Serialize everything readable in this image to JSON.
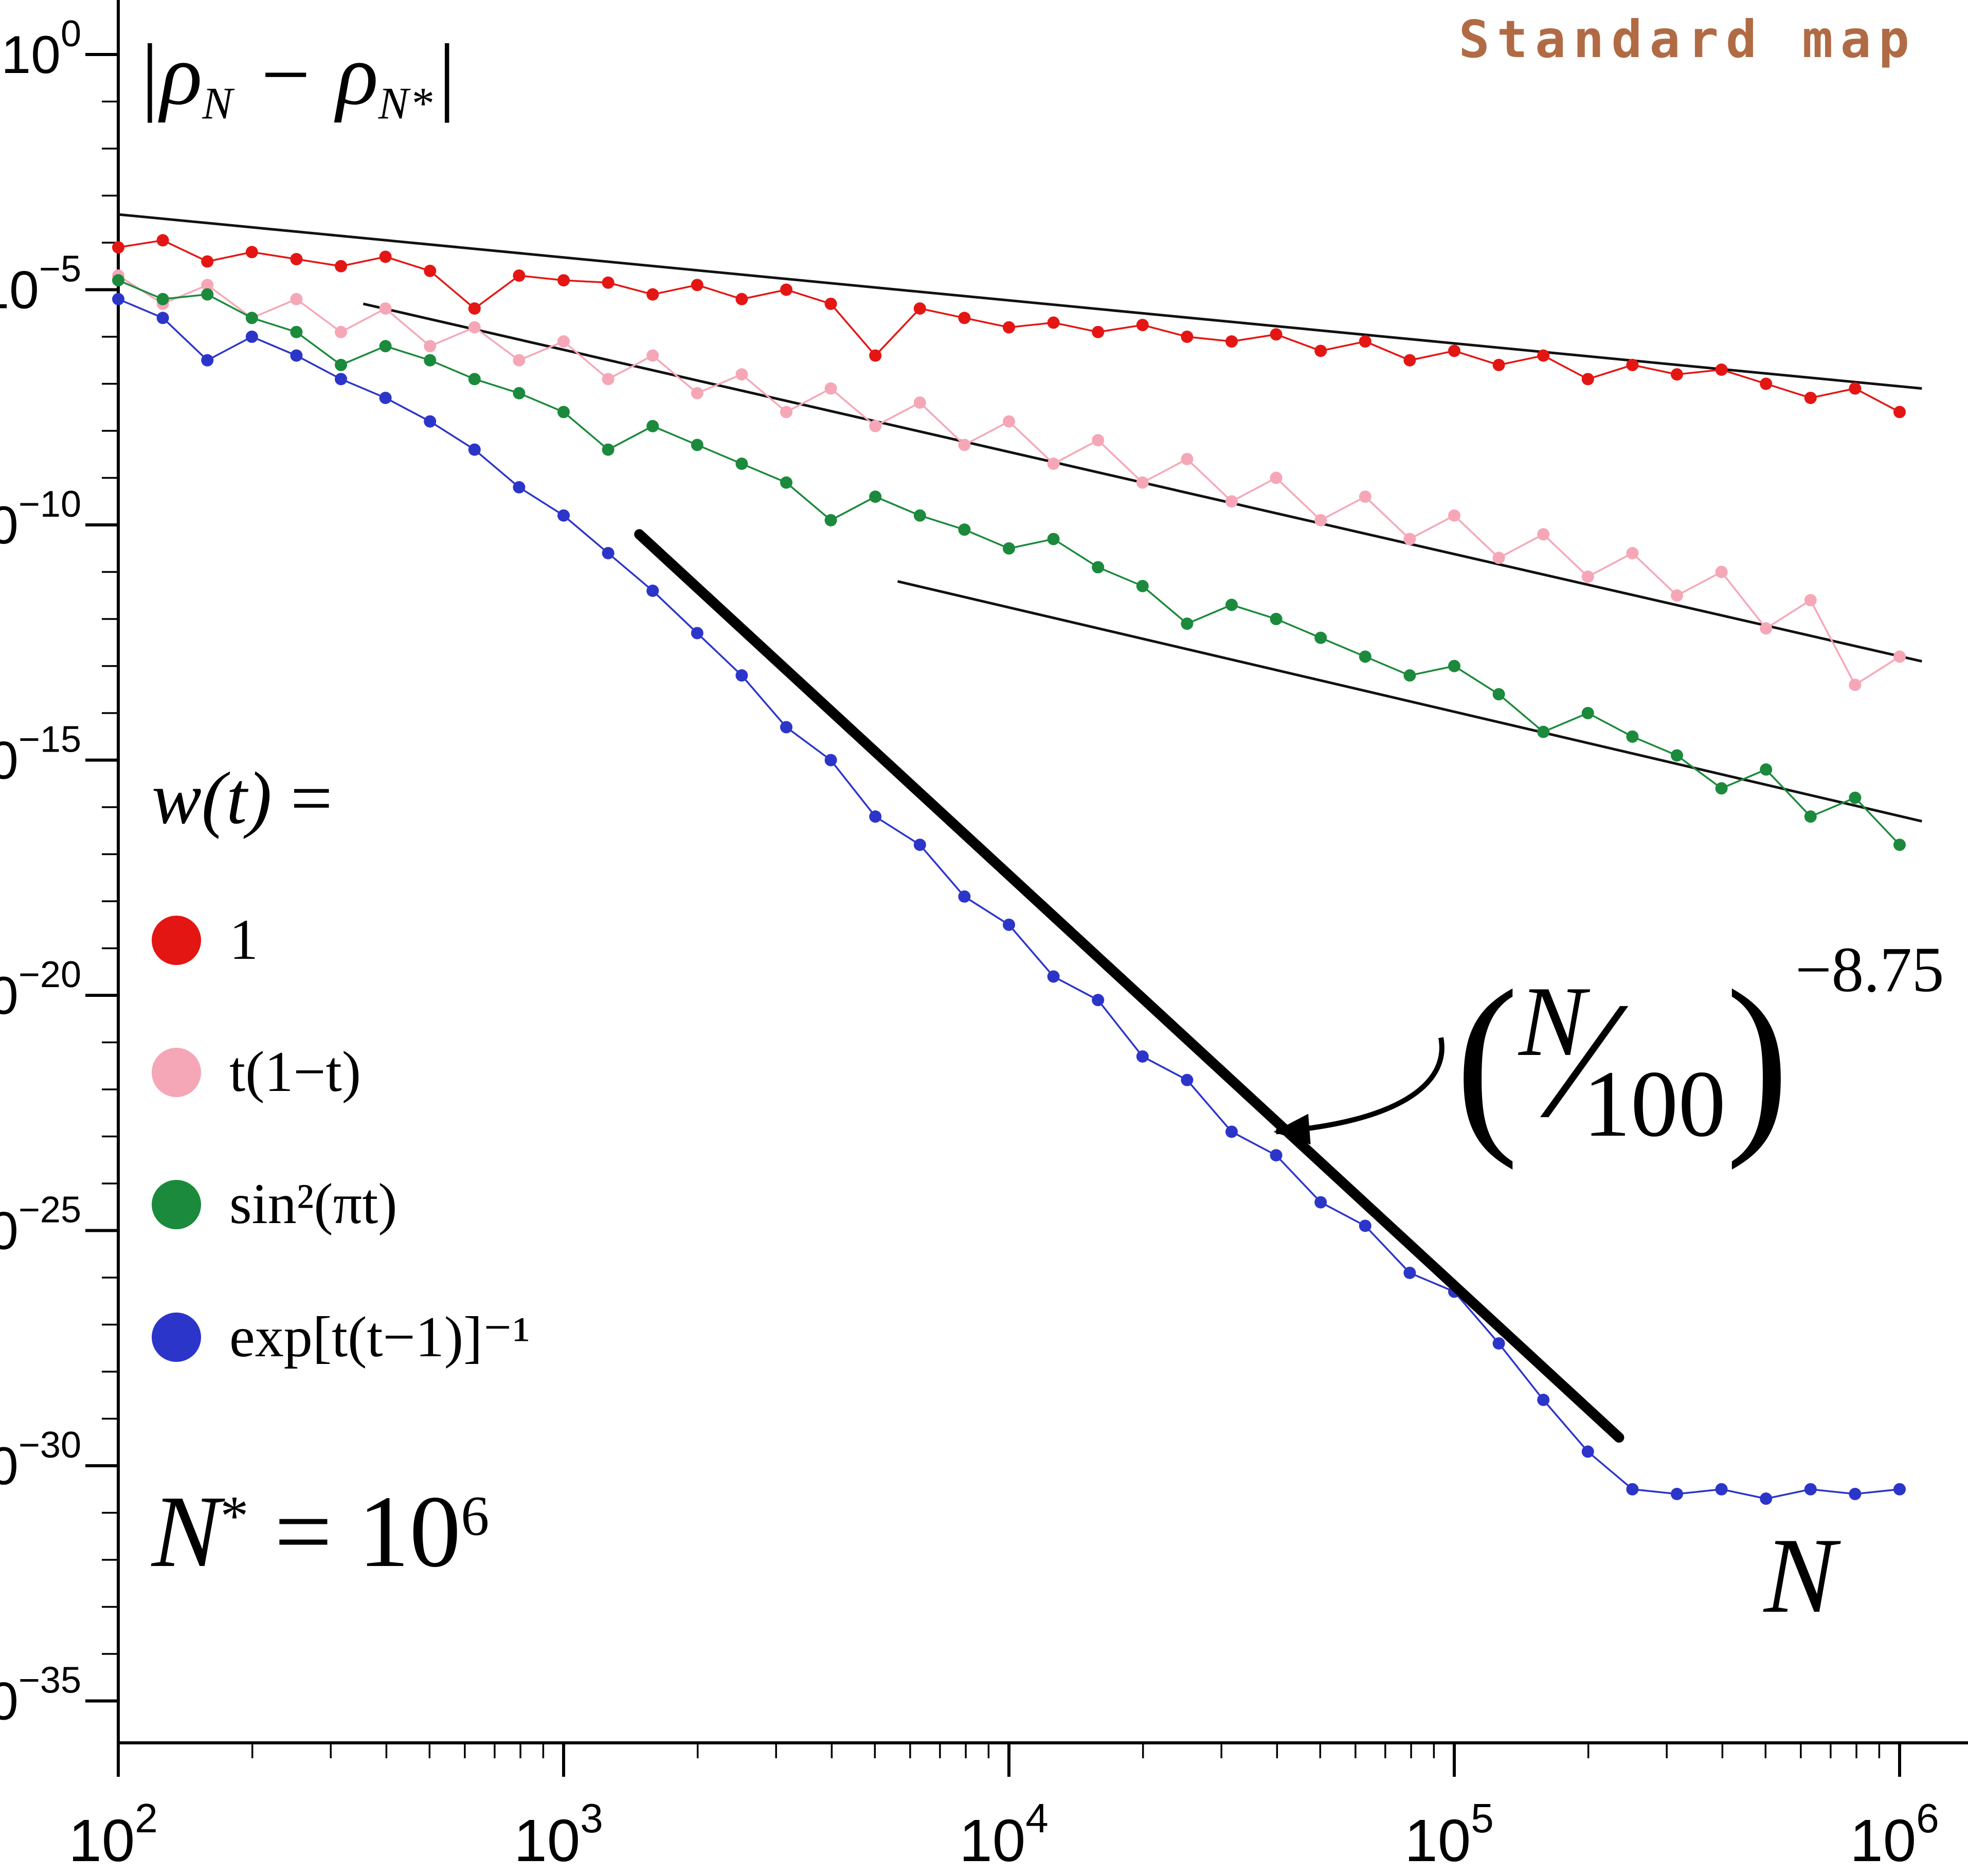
{
  "title": "Standard map",
  "title_color": "#b06b45",
  "xlabel": "N",
  "ylabel": {
    "p1": "|ρ",
    "s1": "N",
    "p2": " − ρ",
    "s2": "N*",
    "p3": "|"
  },
  "nstar": {
    "n": "N",
    "star": "*",
    "eq": " = 10",
    "exp": "6"
  },
  "legend": {
    "heading": {
      "lhs": "w(t)",
      "eq": " ="
    },
    "items": [
      {
        "id": "w1",
        "label": "1",
        "color": "#e41613"
      },
      {
        "id": "t1t",
        "label": "t(1−t)",
        "color": "#f6a7b7"
      },
      {
        "id": "sin2pit",
        "label": "sin²(πt)",
        "color": "#1b8a3c"
      },
      {
        "id": "expbump",
        "label": "exp[t(t−1)]⁻¹",
        "color": "#2c35c9"
      }
    ]
  },
  "annotation": {
    "open": "(",
    "num": "N",
    "slash": "∕",
    "den": "100",
    "close": ")",
    "exp": "−8.75"
  },
  "chart_data": {
    "type": "scatter",
    "title": "Standard map",
    "xlabel": "N",
    "ylabel": "|rho_N - rho_N*|",
    "x_axis": {
      "scale": "log10",
      "lim": [
        2,
        6.05
      ],
      "ticks_log10": [
        2,
        3,
        4,
        5,
        6
      ]
    },
    "y_axis": {
      "scale": "log10",
      "lim": [
        -35.8,
        0.5
      ],
      "major_ticks_log10": [
        0,
        -5,
        -10,
        -15,
        -20,
        -25,
        -30,
        -35
      ]
    },
    "x_log10": [
      2.0,
      2.1,
      2.2,
      2.3,
      2.4,
      2.5,
      2.6,
      2.7,
      2.8,
      2.9,
      3.0,
      3.1,
      3.2,
      3.3,
      3.4,
      3.5,
      3.6,
      3.7,
      3.8,
      3.9,
      4.0,
      4.1,
      4.2,
      4.3,
      4.4,
      4.5,
      4.6,
      4.7,
      4.8,
      4.9,
      5.0,
      5.1,
      5.2,
      5.3,
      5.4,
      5.5,
      5.6,
      5.7,
      5.8,
      5.9,
      6.0
    ],
    "series": [
      {
        "id": "w1",
        "label": "1",
        "color": "#e41613",
        "y_log10": [
          -4.1,
          -3.95,
          -4.4,
          -4.2,
          -4.35,
          -4.5,
          -4.3,
          -4.6,
          -5.4,
          -4.7,
          -4.8,
          -4.85,
          -5.1,
          -4.9,
          -5.2,
          -5.0,
          -5.3,
          -6.4,
          -5.4,
          -5.6,
          -5.8,
          -5.7,
          -5.9,
          -5.75,
          -6.0,
          -6.1,
          -5.95,
          -6.3,
          -6.1,
          -6.5,
          -6.3,
          -6.6,
          -6.4,
          -6.9,
          -6.6,
          -6.8,
          -6.7,
          -7.0,
          -7.3,
          -7.1,
          -7.6
        ]
      },
      {
        "id": "t1t",
        "label": "t(1-t)",
        "color": "#f6a7b7",
        "y_log10": [
          -4.7,
          -5.3,
          -4.9,
          -5.6,
          -5.2,
          -5.9,
          -5.4,
          -6.2,
          -5.8,
          -6.5,
          -6.1,
          -6.9,
          -6.4,
          -7.2,
          -6.8,
          -7.6,
          -7.1,
          -7.9,
          -7.4,
          -8.3,
          -7.8,
          -8.7,
          -8.2,
          -9.1,
          -8.6,
          -9.5,
          -9.0,
          -9.9,
          -9.4,
          -10.3,
          -9.8,
          -10.7,
          -10.2,
          -11.1,
          -10.6,
          -11.5,
          -11.0,
          -12.2,
          -11.6,
          -13.4,
          -12.8
        ]
      },
      {
        "id": "sin2pit",
        "label": "sin^2(pi t)",
        "color": "#1b8a3c",
        "y_log10": [
          -4.8,
          -5.2,
          -5.1,
          -5.6,
          -5.9,
          -6.6,
          -6.2,
          -6.5,
          -6.9,
          -7.2,
          -7.6,
          -8.4,
          -7.9,
          -8.3,
          -8.7,
          -9.1,
          -9.9,
          -9.4,
          -9.8,
          -10.1,
          -10.5,
          -10.3,
          -10.9,
          -11.3,
          -12.1,
          -11.7,
          -12.0,
          -12.4,
          -12.8,
          -13.2,
          -13.0,
          -13.6,
          -14.4,
          -14.0,
          -14.5,
          -14.9,
          -15.6,
          -15.2,
          -16.2,
          -15.8,
          -16.8
        ]
      },
      {
        "id": "expbump",
        "label": "exp[t(t-1)]^-1",
        "color": "#2c35c9",
        "y_log10": [
          -5.2,
          -5.6,
          -6.5,
          -6.0,
          -6.4,
          -6.9,
          -7.3,
          -7.8,
          -8.4,
          -9.2,
          -9.8,
          -10.6,
          -11.4,
          -12.3,
          -13.2,
          -14.3,
          -15.0,
          -16.2,
          -16.8,
          -17.9,
          -18.5,
          -19.6,
          -20.1,
          -21.3,
          -21.8,
          -22.9,
          -23.4,
          -24.4,
          -24.9,
          -25.9,
          -26.3,
          -27.4,
          -28.6,
          -29.7,
          -30.5,
          -30.6,
          -30.5,
          -30.7,
          -30.5,
          -30.6,
          -30.5
        ]
      }
    ],
    "guide_lines": [
      {
        "x1": 2.0,
        "y1": -3.4,
        "x2": 6.05,
        "y2": -7.1
      },
      {
        "x1": 2.55,
        "y1": -5.3,
        "x2": 6.05,
        "y2": -12.9
      },
      {
        "x1": 3.75,
        "y1": -11.2,
        "x2": 6.05,
        "y2": -16.3
      }
    ],
    "power_line": {
      "x1": 3.17,
      "y1": -10.2,
      "x2": 5.37,
      "y2": -29.4,
      "slope_label": "-8.75"
    },
    "arrow": {
      "from": [
        4.97,
        -20.9
      ],
      "c1": [
        4.99,
        -21.9
      ],
      "c2": [
        4.87,
        -22.7
      ],
      "to": [
        4.6,
        -22.9
      ]
    }
  }
}
